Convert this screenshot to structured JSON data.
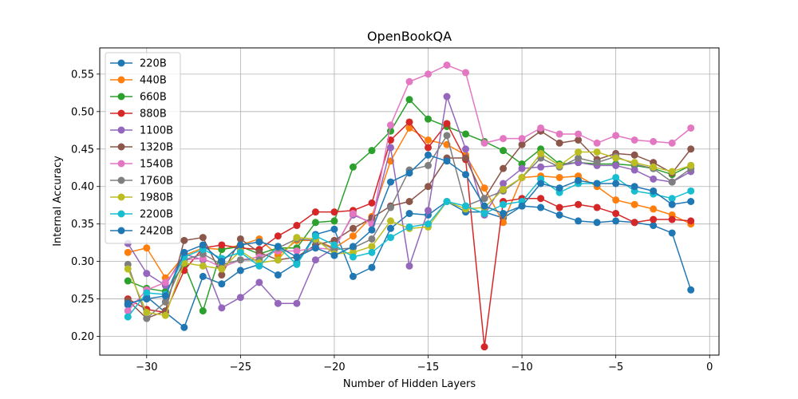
{
  "chart_data": {
    "type": "line",
    "title": "OpenBookQA",
    "xlabel": "Number of Hidden Layers",
    "ylabel": "Internal Accuracy",
    "xlim": [
      -32.5,
      0.5
    ],
    "ylim": [
      0.175,
      0.585
    ],
    "xticks": [
      -30,
      -25,
      -20,
      -15,
      -10,
      -5,
      0
    ],
    "xtick_labels": [
      "−30",
      "−25",
      "−20",
      "−15",
      "−10",
      "−5",
      "0"
    ],
    "yticks": [
      0.2,
      0.25,
      0.3,
      0.35,
      0.4,
      0.45,
      0.5,
      0.55
    ],
    "ytick_labels": [
      "0.20",
      "0.25",
      "0.30",
      "0.35",
      "0.40",
      "0.45",
      "0.50",
      "0.55"
    ],
    "grid": true,
    "legend_position": "upper-left",
    "x": [
      -31,
      -30,
      -29,
      -28,
      -27,
      -26,
      -25,
      -24,
      -23,
      -22,
      -21,
      -20,
      -19,
      -18,
      -17,
      -16,
      -15,
      -14,
      -13,
      -12,
      -11,
      -10,
      -9,
      -8,
      -7,
      -6,
      -5,
      -4,
      -3,
      -2,
      -1
    ],
    "series": [
      {
        "name": "220B",
        "color": "#1f77b4",
        "values": [
          0.242,
          0.253,
          0.232,
          0.212,
          0.28,
          0.27,
          0.288,
          0.296,
          0.282,
          0.298,
          0.336,
          0.343,
          0.28,
          0.292,
          0.344,
          0.364,
          0.362,
          0.38,
          0.366,
          0.366,
          0.358,
          0.374,
          0.372,
          0.362,
          0.354,
          0.352,
          0.354,
          0.352,
          0.348,
          0.338,
          0.262
        ]
      },
      {
        "name": "440B",
        "color": "#ff7f0e",
        "values": [
          0.312,
          0.318,
          0.278,
          0.308,
          0.318,
          0.316,
          0.322,
          0.33,
          0.308,
          0.328,
          0.328,
          0.318,
          0.334,
          0.36,
          0.434,
          0.478,
          0.462,
          0.456,
          0.442,
          0.398,
          0.352,
          0.412,
          0.414,
          0.412,
          0.414,
          0.4,
          0.382,
          0.376,
          0.37,
          0.362,
          0.35
        ]
      },
      {
        "name": "660B",
        "color": "#2ca02c",
        "values": [
          0.274,
          0.264,
          0.26,
          0.296,
          0.234,
          0.316,
          0.32,
          0.31,
          0.318,
          0.318,
          0.352,
          0.354,
          0.426,
          0.448,
          0.474,
          0.516,
          0.49,
          0.48,
          0.47,
          0.46,
          0.448,
          0.43,
          0.45,
          0.43,
          0.432,
          0.43,
          0.43,
          0.428,
          0.424,
          0.416,
          0.428
        ]
      },
      {
        "name": "880B",
        "color": "#d62728",
        "values": [
          0.25,
          0.236,
          0.232,
          0.288,
          0.318,
          0.322,
          0.318,
          0.316,
          0.334,
          0.348,
          0.366,
          0.366,
          0.368,
          0.378,
          0.462,
          0.486,
          0.452,
          0.484,
          0.436,
          0.186,
          0.38,
          0.384,
          0.384,
          0.372,
          0.376,
          0.372,
          0.364,
          0.352,
          0.356,
          0.356,
          0.354
        ]
      },
      {
        "name": "1100B",
        "color": "#9467bd",
        "values": [
          0.324,
          0.284,
          0.268,
          0.31,
          0.302,
          0.238,
          0.252,
          0.272,
          0.244,
          0.244,
          0.302,
          0.318,
          0.362,
          0.352,
          0.452,
          0.294,
          0.368,
          0.52,
          0.45,
          0.362,
          0.404,
          0.424,
          0.426,
          0.428,
          0.432,
          0.428,
          0.428,
          0.422,
          0.41,
          0.406,
          0.42
        ]
      },
      {
        "name": "1320B",
        "color": "#8c564b",
        "values": [
          0.248,
          0.224,
          0.234,
          0.328,
          0.332,
          0.282,
          0.33,
          0.312,
          0.302,
          0.306,
          0.322,
          0.328,
          0.344,
          0.358,
          0.374,
          0.38,
          0.4,
          0.438,
          0.438,
          0.384,
          0.424,
          0.456,
          0.474,
          0.458,
          0.462,
          0.436,
          0.444,
          0.442,
          0.432,
          0.418,
          0.45
        ]
      },
      {
        "name": "1540B",
        "color": "#e377c2",
        "values": [
          0.234,
          0.262,
          0.272,
          0.302,
          0.304,
          0.292,
          0.302,
          0.306,
          0.314,
          0.314,
          0.318,
          0.316,
          0.364,
          0.35,
          0.482,
          0.54,
          0.55,
          0.562,
          0.552,
          0.458,
          0.464,
          0.464,
          0.478,
          0.47,
          0.47,
          0.458,
          0.468,
          0.462,
          0.46,
          0.458,
          0.478
        ]
      },
      {
        "name": "1760B",
        "color": "#7f7f7f",
        "values": [
          0.296,
          0.224,
          0.246,
          0.302,
          0.31,
          0.296,
          0.302,
          0.302,
          0.318,
          0.33,
          0.328,
          0.316,
          0.318,
          0.33,
          0.372,
          0.422,
          0.428,
          0.468,
          0.374,
          0.384,
          0.394,
          0.412,
          0.438,
          0.426,
          0.438,
          0.432,
          0.44,
          0.43,
          0.424,
          0.406,
          0.424
        ]
      },
      {
        "name": "1980B",
        "color": "#bcbd22",
        "values": [
          0.29,
          0.232,
          0.228,
          0.298,
          0.294,
          0.29,
          0.314,
          0.298,
          0.302,
          0.332,
          0.33,
          0.31,
          0.312,
          0.32,
          0.354,
          0.344,
          0.346,
          0.38,
          0.37,
          0.372,
          0.396,
          0.412,
          0.444,
          0.428,
          0.446,
          0.446,
          0.438,
          0.432,
          0.426,
          0.42,
          0.428
        ]
      },
      {
        "name": "2200B",
        "color": "#17becf",
        "values": [
          0.226,
          0.258,
          0.256,
          0.306,
          0.316,
          0.304,
          0.312,
          0.294,
          0.32,
          0.296,
          0.334,
          0.322,
          0.306,
          0.312,
          0.332,
          0.346,
          0.35,
          0.38,
          0.374,
          0.364,
          0.376,
          0.38,
          0.41,
          0.392,
          0.404,
          0.404,
          0.412,
          0.394,
          0.39,
          0.384,
          0.394
        ]
      },
      {
        "name": "2420B",
        "color": "#1f77b4",
        "values": [
          0.244,
          0.25,
          0.254,
          0.312,
          0.322,
          0.3,
          0.322,
          0.326,
          0.32,
          0.306,
          0.318,
          0.308,
          0.32,
          0.342,
          0.406,
          0.418,
          0.442,
          0.434,
          0.416,
          0.374,
          0.364,
          0.374,
          0.404,
          0.398,
          0.408,
          0.404,
          0.404,
          0.4,
          0.394,
          0.376,
          0.38
        ]
      }
    ]
  }
}
